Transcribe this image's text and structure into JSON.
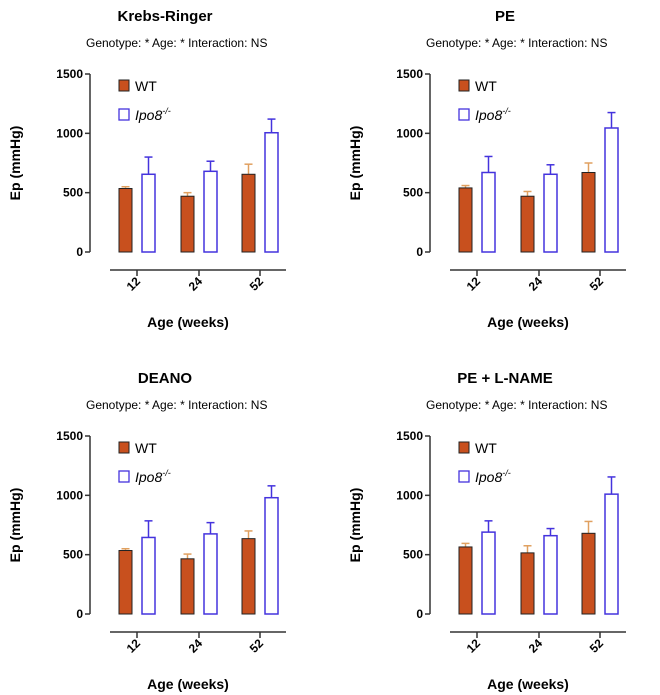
{
  "chart_data": [
    {
      "type": "bar",
      "title": "Krebs-Ringer",
      "subtitle": "Genotype: *   Age: *   Interaction: NS",
      "xlabel": "Age (weeks)",
      "ylabel": "Ep (mmHg)",
      "categories": [
        "12",
        "24",
        "52"
      ],
      "ylim": [
        0,
        1500
      ],
      "yticks": [
        "0",
        "500",
        "1000",
        "1500"
      ],
      "legend_position": "top-left",
      "series": [
        {
          "name": "WT",
          "values": [
            535,
            470,
            655
          ],
          "errors": [
            15,
            30,
            85
          ]
        },
        {
          "name": "Ipo8",
          "superscript": "-/-",
          "values": [
            655,
            680,
            1005
          ],
          "errors": [
            145,
            85,
            115
          ]
        }
      ]
    },
    {
      "type": "bar",
      "title": "PE",
      "subtitle": "Genotype: *   Age: *   Interaction: NS",
      "xlabel": "Age (weeks)",
      "ylabel": "Ep (mmHg)",
      "categories": [
        "12",
        "24",
        "52"
      ],
      "ylim": [
        0,
        1500
      ],
      "yticks": [
        "0",
        "500",
        "1000",
        "1500"
      ],
      "legend_position": "top-left",
      "series": [
        {
          "name": "WT",
          "values": [
            540,
            470,
            670
          ],
          "errors": [
            20,
            40,
            80
          ]
        },
        {
          "name": "Ipo8",
          "superscript": "-/-",
          "values": [
            670,
            655,
            1045
          ],
          "errors": [
            135,
            80,
            130
          ]
        }
      ]
    },
    {
      "type": "bar",
      "title": "DEANO",
      "subtitle": "Genotype: *   Age: *   Interaction: NS",
      "xlabel": "Age (weeks)",
      "ylabel": "Ep (mmHg)",
      "categories": [
        "12",
        "24",
        "52"
      ],
      "ylim": [
        0,
        1500
      ],
      "yticks": [
        "0",
        "500",
        "1000",
        "1500"
      ],
      "legend_position": "top-left",
      "series": [
        {
          "name": "WT",
          "values": [
            535,
            465,
            635
          ],
          "errors": [
            15,
            40,
            65
          ]
        },
        {
          "name": "Ipo8",
          "superscript": "-/-",
          "values": [
            645,
            675,
            980
          ],
          "errors": [
            140,
            95,
            100
          ]
        }
      ]
    },
    {
      "type": "bar",
      "title": "PE + L-NAME",
      "subtitle": "Genotype: *   Age: *   Interaction: NS",
      "xlabel": "Age (weeks)",
      "ylabel": "Ep (mmHg)",
      "categories": [
        "12",
        "24",
        "52"
      ],
      "ylim": [
        0,
        1500
      ],
      "yticks": [
        "0",
        "500",
        "1000",
        "1500"
      ],
      "legend_position": "top-left",
      "series": [
        {
          "name": "WT",
          "values": [
            565,
            515,
            680
          ],
          "errors": [
            30,
            60,
            100
          ]
        },
        {
          "name": "Ipo8",
          "superscript": "-/-",
          "values": [
            690,
            660,
            1010
          ],
          "errors": [
            95,
            60,
            145
          ]
        }
      ]
    }
  ],
  "colors": {
    "wt_fill": "#c8501e",
    "wt_err": "#e0a060",
    "ko_stroke": "#4433dd",
    "axis": "#333333"
  }
}
